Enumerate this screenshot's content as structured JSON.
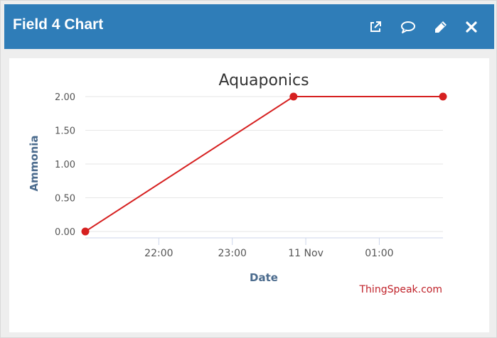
{
  "widget": {
    "title": "Field 4 Chart",
    "colors": {
      "header": "#2f7db8",
      "line": "#d62020",
      "axis_title": "#4b6b8d"
    },
    "actions": [
      {
        "name": "external-link-icon"
      },
      {
        "name": "comment-icon"
      },
      {
        "name": "pencil-icon"
      },
      {
        "name": "close-icon"
      }
    ]
  },
  "chart_data": {
    "type": "line",
    "title": "Aquaponics",
    "xlabel": "Date",
    "ylabel": "Ammonia",
    "ylim": [
      0,
      2
    ],
    "yticks": [
      "0.00",
      "0.50",
      "1.00",
      "1.50",
      "2.00"
    ],
    "xticks": [
      "22:00",
      "23:00",
      "11 Nov",
      "01:00"
    ],
    "xlim": [
      "2017-11-10T21:00",
      "2017-11-11T01:52"
    ],
    "grid": true,
    "legend": "none",
    "series": [
      {
        "x": [
          "2017-11-10T21:00",
          "2017-11-10T23:50",
          "2017-11-11T01:52"
        ],
        "y": [
          0,
          2,
          2
        ]
      }
    ],
    "credits": "ThingSpeak.com"
  }
}
